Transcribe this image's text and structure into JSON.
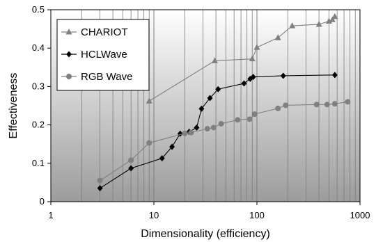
{
  "chart_data": {
    "type": "line",
    "x_scale": "log",
    "xlabel": "Dimensionality (efficiency)",
    "ylabel": "Effectiveness",
    "xlim": [
      1,
      1000
    ],
    "ylim": [
      0,
      0.5
    ],
    "x_ticks": [
      "1",
      "10",
      "100",
      "1000"
    ],
    "y_ticks": [
      "0",
      "0.1",
      "0.2",
      "0.3",
      "0.4",
      "0.5"
    ],
    "grid": "vertical log gridlines",
    "legend_position": "top-left",
    "background": "gradient white to gray",
    "series": [
      {
        "name": "CHARIOT",
        "marker": "triangle",
        "color": "#808080",
        "x": [
          9,
          39,
          90,
          100,
          160,
          220,
          400,
          500,
          540,
          570
        ],
        "y": [
          0.262,
          0.367,
          0.372,
          0.402,
          0.427,
          0.458,
          0.462,
          0.47,
          0.474,
          0.482
        ]
      },
      {
        "name": "HCLWave",
        "marker": "diamond",
        "color": "#000000",
        "x": [
          3,
          6,
          12,
          15,
          18,
          22,
          26,
          29,
          35,
          42,
          75,
          86,
          92,
          180,
          570
        ],
        "y": [
          0.035,
          0.087,
          0.113,
          0.143,
          0.177,
          0.182,
          0.193,
          0.242,
          0.27,
          0.293,
          0.308,
          0.32,
          0.325,
          0.328,
          0.33
        ]
      },
      {
        "name": "RGB Wave",
        "marker": "circle",
        "color": "#808080",
        "x": [
          3,
          6,
          9,
          20,
          23,
          33,
          38,
          45,
          65,
          85,
          95,
          160,
          190,
          380,
          480,
          570,
          760
        ],
        "y": [
          0.055,
          0.108,
          0.153,
          0.178,
          0.18,
          0.19,
          0.193,
          0.203,
          0.213,
          0.215,
          0.228,
          0.243,
          0.251,
          0.253,
          0.253,
          0.255,
          0.26
        ]
      }
    ]
  }
}
